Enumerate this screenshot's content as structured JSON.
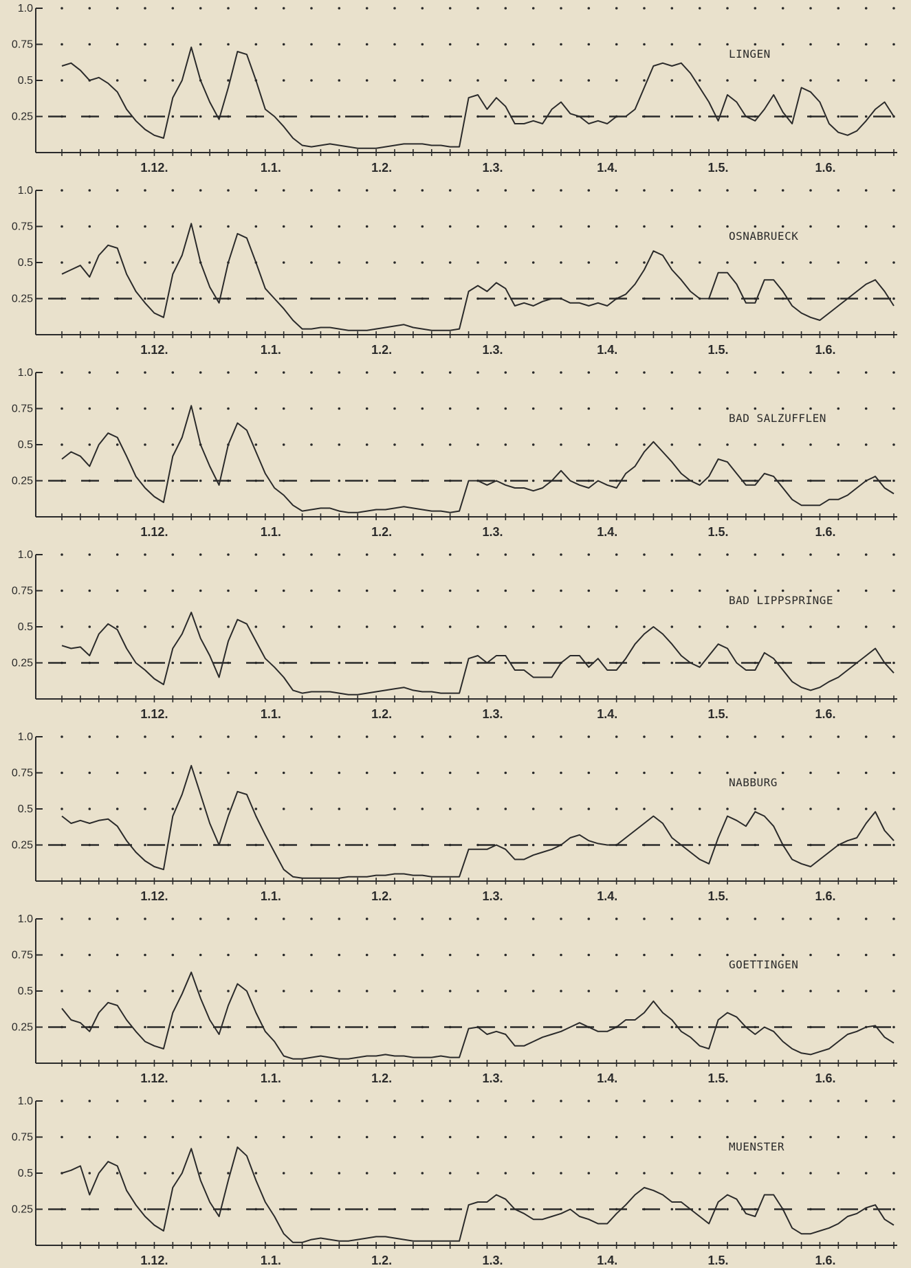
{
  "colors": {
    "background": "#e9e1cc",
    "ink": "#2a2a2a"
  },
  "chart_data": [
    {
      "type": "line",
      "name": "LINGEN",
      "title": "LINGEN",
      "x": [
        0.0,
        0.5,
        1.0,
        1.5,
        2.0,
        2.5,
        3.0,
        3.5,
        4.0,
        4.5,
        5.0,
        5.5,
        6.0,
        6.5,
        7.0,
        7.5,
        8.0,
        8.5,
        9.0,
        9.5,
        10.0,
        10.5,
        11.0,
        11.5,
        12.0,
        12.5,
        13.0,
        13.5,
        14.0,
        14.5,
        15.0,
        15.5,
        16.0,
        16.5,
        17.0,
        17.5,
        18.0,
        18.5,
        19.0,
        19.5,
        20.0,
        20.5,
        21.0,
        21.5,
        22.0,
        22.5,
        23.0,
        23.5,
        24.0,
        24.5,
        25.0,
        25.5,
        26.0,
        26.5,
        27.0,
        27.5,
        28.0,
        28.5,
        29.0,
        29.5,
        30.0,
        30.5,
        31.0,
        31.5,
        32.0,
        32.5,
        33.0,
        33.5,
        34.0,
        34.5,
        35.0,
        35.5,
        36.0,
        36.5,
        37.0,
        37.5,
        38.0,
        38.5,
        39.0,
        39.5,
        40.0,
        40.5,
        41.0,
        41.5,
        42.0,
        42.5,
        43.0,
        43.5,
        44.0,
        44.5,
        45.0
      ],
      "y": [
        0.6,
        0.62,
        0.57,
        0.5,
        0.52,
        0.48,
        0.42,
        0.3,
        0.22,
        0.16,
        0.12,
        0.1,
        0.38,
        0.5,
        0.73,
        0.5,
        0.35,
        0.23,
        0.45,
        0.7,
        0.68,
        0.5,
        0.3,
        0.25,
        0.18,
        0.1,
        0.05,
        0.04,
        0.05,
        0.06,
        0.05,
        0.04,
        0.03,
        0.03,
        0.03,
        0.04,
        0.05,
        0.06,
        0.06,
        0.06,
        0.05,
        0.05,
        0.04,
        0.04,
        0.38,
        0.4,
        0.3,
        0.38,
        0.32,
        0.2,
        0.2,
        0.22,
        0.2,
        0.3,
        0.35,
        0.27,
        0.25,
        0.2,
        0.22,
        0.2,
        0.25,
        0.25,
        0.3,
        0.45,
        0.6,
        0.62,
        0.6,
        0.62,
        0.55,
        0.45,
        0.35,
        0.22,
        0.4,
        0.35,
        0.25,
        0.22,
        0.3,
        0.4,
        0.28,
        0.2,
        0.45,
        0.42,
        0.35,
        0.2,
        0.14,
        0.12,
        0.15,
        0.22,
        0.3,
        0.35,
        0.25
      ]
    },
    {
      "type": "line",
      "name": "OSNABRUECK",
      "title": "OSNABRUECK",
      "x": [
        0.0,
        0.5,
        1.0,
        1.5,
        2.0,
        2.5,
        3.0,
        3.5,
        4.0,
        4.5,
        5.0,
        5.5,
        6.0,
        6.5,
        7.0,
        7.5,
        8.0,
        8.5,
        9.0,
        9.5,
        10.0,
        10.5,
        11.0,
        11.5,
        12.0,
        12.5,
        13.0,
        13.5,
        14.0,
        14.5,
        15.0,
        15.5,
        16.0,
        16.5,
        17.0,
        17.5,
        18.0,
        18.5,
        19.0,
        19.5,
        20.0,
        20.5,
        21.0,
        21.5,
        22.0,
        22.5,
        23.0,
        23.5,
        24.0,
        24.5,
        25.0,
        25.5,
        26.0,
        26.5,
        27.0,
        27.5,
        28.0,
        28.5,
        29.0,
        29.5,
        30.0,
        30.5,
        31.0,
        31.5,
        32.0,
        32.5,
        33.0,
        33.5,
        34.0,
        34.5,
        35.0,
        35.5,
        36.0,
        36.5,
        37.0,
        37.5,
        38.0,
        38.5,
        39.0,
        39.5,
        40.0,
        40.5,
        41.0,
        41.5,
        42.0,
        42.5,
        43.0,
        43.5,
        44.0,
        44.5,
        45.0
      ],
      "y": [
        0.42,
        0.45,
        0.48,
        0.4,
        0.55,
        0.62,
        0.6,
        0.42,
        0.3,
        0.22,
        0.15,
        0.12,
        0.42,
        0.55,
        0.77,
        0.5,
        0.33,
        0.22,
        0.5,
        0.7,
        0.67,
        0.5,
        0.32,
        0.25,
        0.18,
        0.1,
        0.04,
        0.04,
        0.05,
        0.05,
        0.04,
        0.03,
        0.03,
        0.03,
        0.04,
        0.05,
        0.06,
        0.07,
        0.05,
        0.04,
        0.03,
        0.03,
        0.03,
        0.04,
        0.3,
        0.34,
        0.3,
        0.36,
        0.32,
        0.2,
        0.22,
        0.2,
        0.23,
        0.25,
        0.25,
        0.22,
        0.22,
        0.2,
        0.22,
        0.2,
        0.25,
        0.28,
        0.35,
        0.45,
        0.58,
        0.55,
        0.45,
        0.38,
        0.3,
        0.25,
        0.25,
        0.43,
        0.43,
        0.35,
        0.22,
        0.22,
        0.38,
        0.38,
        0.3,
        0.2,
        0.15,
        0.12,
        0.1,
        0.15,
        0.2,
        0.25,
        0.3,
        0.35,
        0.38,
        0.3,
        0.2
      ]
    },
    {
      "type": "line",
      "name": "BAD SALZUFFLEN",
      "title": "BAD SALZUFFLEN",
      "x": [
        0.0,
        0.5,
        1.0,
        1.5,
        2.0,
        2.5,
        3.0,
        3.5,
        4.0,
        4.5,
        5.0,
        5.5,
        6.0,
        6.5,
        7.0,
        7.5,
        8.0,
        8.5,
        9.0,
        9.5,
        10.0,
        10.5,
        11.0,
        11.5,
        12.0,
        12.5,
        13.0,
        13.5,
        14.0,
        14.5,
        15.0,
        15.5,
        16.0,
        16.5,
        17.0,
        17.5,
        18.0,
        18.5,
        19.0,
        19.5,
        20.0,
        20.5,
        21.0,
        21.5,
        22.0,
        22.5,
        23.0,
        23.5,
        24.0,
        24.5,
        25.0,
        25.5,
        26.0,
        26.5,
        27.0,
        27.5,
        28.0,
        28.5,
        29.0,
        29.5,
        30.0,
        30.5,
        31.0,
        31.5,
        32.0,
        32.5,
        33.0,
        33.5,
        34.0,
        34.5,
        35.0,
        35.5,
        36.0,
        36.5,
        37.0,
        37.5,
        38.0,
        38.5,
        39.0,
        39.5,
        40.0,
        40.5,
        41.0,
        41.5,
        42.0,
        42.5,
        43.0,
        43.5,
        44.0,
        44.5,
        45.0
      ],
      "y": [
        0.4,
        0.45,
        0.42,
        0.35,
        0.5,
        0.58,
        0.55,
        0.42,
        0.28,
        0.2,
        0.14,
        0.1,
        0.42,
        0.55,
        0.77,
        0.5,
        0.35,
        0.22,
        0.5,
        0.65,
        0.6,
        0.45,
        0.3,
        0.2,
        0.15,
        0.08,
        0.04,
        0.05,
        0.06,
        0.06,
        0.04,
        0.03,
        0.03,
        0.04,
        0.05,
        0.05,
        0.06,
        0.07,
        0.06,
        0.05,
        0.04,
        0.04,
        0.03,
        0.04,
        0.25,
        0.25,
        0.22,
        0.25,
        0.22,
        0.2,
        0.2,
        0.18,
        0.2,
        0.25,
        0.32,
        0.25,
        0.22,
        0.2,
        0.25,
        0.22,
        0.2,
        0.3,
        0.35,
        0.45,
        0.52,
        0.45,
        0.38,
        0.3,
        0.25,
        0.22,
        0.28,
        0.4,
        0.38,
        0.3,
        0.22,
        0.22,
        0.3,
        0.28,
        0.2,
        0.12,
        0.08,
        0.08,
        0.08,
        0.12,
        0.12,
        0.15,
        0.2,
        0.25,
        0.28,
        0.2,
        0.16
      ]
    },
    {
      "type": "line",
      "name": "BAD LIPPSPRINGE",
      "title": "BAD LIPPSPRINGE",
      "x": [
        0.0,
        0.5,
        1.0,
        1.5,
        2.0,
        2.5,
        3.0,
        3.5,
        4.0,
        4.5,
        5.0,
        5.5,
        6.0,
        6.5,
        7.0,
        7.5,
        8.0,
        8.5,
        9.0,
        9.5,
        10.0,
        10.5,
        11.0,
        11.5,
        12.0,
        12.5,
        13.0,
        13.5,
        14.0,
        14.5,
        15.0,
        15.5,
        16.0,
        16.5,
        17.0,
        17.5,
        18.0,
        18.5,
        19.0,
        19.5,
        20.0,
        20.5,
        21.0,
        21.5,
        22.0,
        22.5,
        23.0,
        23.5,
        24.0,
        24.5,
        25.0,
        25.5,
        26.0,
        26.5,
        27.0,
        27.5,
        28.0,
        28.5,
        29.0,
        29.5,
        30.0,
        30.5,
        31.0,
        31.5,
        32.0,
        32.5,
        33.0,
        33.5,
        34.0,
        34.5,
        35.0,
        35.5,
        36.0,
        36.5,
        37.0,
        37.5,
        38.0,
        38.5,
        39.0,
        39.5,
        40.0,
        40.5,
        41.0,
        41.5,
        42.0,
        42.5,
        43.0,
        43.5,
        44.0,
        44.5,
        45.0
      ],
      "y": [
        0.37,
        0.35,
        0.36,
        0.3,
        0.45,
        0.52,
        0.48,
        0.35,
        0.25,
        0.2,
        0.14,
        0.1,
        0.35,
        0.45,
        0.6,
        0.42,
        0.3,
        0.15,
        0.4,
        0.55,
        0.52,
        0.4,
        0.28,
        0.22,
        0.15,
        0.06,
        0.04,
        0.05,
        0.05,
        0.05,
        0.04,
        0.03,
        0.03,
        0.04,
        0.05,
        0.06,
        0.07,
        0.08,
        0.06,
        0.05,
        0.05,
        0.04,
        0.04,
        0.04,
        0.28,
        0.3,
        0.25,
        0.3,
        0.3,
        0.2,
        0.2,
        0.15,
        0.15,
        0.15,
        0.25,
        0.3,
        0.3,
        0.22,
        0.28,
        0.2,
        0.2,
        0.28,
        0.38,
        0.45,
        0.5,
        0.45,
        0.38,
        0.3,
        0.25,
        0.22,
        0.3,
        0.38,
        0.35,
        0.25,
        0.2,
        0.2,
        0.32,
        0.28,
        0.2,
        0.12,
        0.08,
        0.06,
        0.08,
        0.12,
        0.15,
        0.2,
        0.25,
        0.3,
        0.35,
        0.25,
        0.18
      ]
    },
    {
      "type": "line",
      "name": "NABBURG",
      "title": "NABBURG",
      "x": [
        0.0,
        0.5,
        1.0,
        1.5,
        2.0,
        2.5,
        3.0,
        3.5,
        4.0,
        4.5,
        5.0,
        5.5,
        6.0,
        6.5,
        7.0,
        7.5,
        8.0,
        8.5,
        9.0,
        9.5,
        10.0,
        10.5,
        11.0,
        11.5,
        12.0,
        12.5,
        13.0,
        13.5,
        14.0,
        14.5,
        15.0,
        15.5,
        16.0,
        16.5,
        17.0,
        17.5,
        18.0,
        18.5,
        19.0,
        19.5,
        20.0,
        20.5,
        21.0,
        21.5,
        22.0,
        22.5,
        23.0,
        23.5,
        24.0,
        24.5,
        25.0,
        25.5,
        26.0,
        26.5,
        27.0,
        27.5,
        28.0,
        28.5,
        29.0,
        29.5,
        30.0,
        30.5,
        31.0,
        31.5,
        32.0,
        32.5,
        33.0,
        33.5,
        34.0,
        34.5,
        35.0,
        35.5,
        36.0,
        36.5,
        37.0,
        37.5,
        38.0,
        38.5,
        39.0,
        39.5,
        40.0,
        40.5,
        41.0,
        41.5,
        42.0,
        42.5,
        43.0,
        43.5,
        44.0,
        44.5,
        45.0
      ],
      "y": [
        0.45,
        0.4,
        0.42,
        0.4,
        0.42,
        0.43,
        0.38,
        0.28,
        0.2,
        0.14,
        0.1,
        0.08,
        0.45,
        0.6,
        0.8,
        0.6,
        0.4,
        0.25,
        0.45,
        0.62,
        0.6,
        0.45,
        0.32,
        0.2,
        0.08,
        0.03,
        0.02,
        0.02,
        0.02,
        0.02,
        0.02,
        0.03,
        0.03,
        0.03,
        0.04,
        0.04,
        0.05,
        0.05,
        0.04,
        0.04,
        0.03,
        0.03,
        0.03,
        0.03,
        0.22,
        0.22,
        0.22,
        0.25,
        0.22,
        0.15,
        0.15,
        0.18,
        0.2,
        0.22,
        0.25,
        0.3,
        0.32,
        0.28,
        0.26,
        0.25,
        0.25,
        0.3,
        0.35,
        0.4,
        0.45,
        0.4,
        0.3,
        0.25,
        0.2,
        0.15,
        0.12,
        0.3,
        0.45,
        0.42,
        0.38,
        0.48,
        0.45,
        0.38,
        0.25,
        0.15,
        0.12,
        0.1,
        0.15,
        0.2,
        0.25,
        0.28,
        0.3,
        0.4,
        0.48,
        0.35,
        0.28
      ]
    },
    {
      "type": "line",
      "name": "GOETTINGEN",
      "title": "GOETTINGEN",
      "x": [
        0.0,
        0.5,
        1.0,
        1.5,
        2.0,
        2.5,
        3.0,
        3.5,
        4.0,
        4.5,
        5.0,
        5.5,
        6.0,
        6.5,
        7.0,
        7.5,
        8.0,
        8.5,
        9.0,
        9.5,
        10.0,
        10.5,
        11.0,
        11.5,
        12.0,
        12.5,
        13.0,
        13.5,
        14.0,
        14.5,
        15.0,
        15.5,
        16.0,
        16.5,
        17.0,
        17.5,
        18.0,
        18.5,
        19.0,
        19.5,
        20.0,
        20.5,
        21.0,
        21.5,
        22.0,
        22.5,
        23.0,
        23.5,
        24.0,
        24.5,
        25.0,
        25.5,
        26.0,
        26.5,
        27.0,
        27.5,
        28.0,
        28.5,
        29.0,
        29.5,
        30.0,
        30.5,
        31.0,
        31.5,
        32.0,
        32.5,
        33.0,
        33.5,
        34.0,
        34.5,
        35.0,
        35.5,
        36.0,
        36.5,
        37.0,
        37.5,
        38.0,
        38.5,
        39.0,
        39.5,
        40.0,
        40.5,
        41.0,
        41.5,
        42.0,
        42.5,
        43.0,
        43.5,
        44.0,
        44.5,
        45.0
      ],
      "y": [
        0.38,
        0.3,
        0.28,
        0.22,
        0.35,
        0.42,
        0.4,
        0.3,
        0.22,
        0.15,
        0.12,
        0.1,
        0.35,
        0.48,
        0.63,
        0.45,
        0.3,
        0.2,
        0.4,
        0.55,
        0.5,
        0.35,
        0.22,
        0.15,
        0.05,
        0.03,
        0.03,
        0.04,
        0.05,
        0.04,
        0.03,
        0.03,
        0.04,
        0.05,
        0.05,
        0.06,
        0.05,
        0.05,
        0.04,
        0.04,
        0.04,
        0.05,
        0.04,
        0.04,
        0.24,
        0.25,
        0.2,
        0.22,
        0.2,
        0.12,
        0.12,
        0.15,
        0.18,
        0.2,
        0.22,
        0.25,
        0.28,
        0.25,
        0.22,
        0.22,
        0.25,
        0.3,
        0.3,
        0.35,
        0.43,
        0.35,
        0.3,
        0.22,
        0.18,
        0.12,
        0.1,
        0.3,
        0.35,
        0.32,
        0.25,
        0.2,
        0.25,
        0.22,
        0.15,
        0.1,
        0.07,
        0.06,
        0.08,
        0.1,
        0.15,
        0.2,
        0.22,
        0.25,
        0.26,
        0.18,
        0.14
      ]
    },
    {
      "type": "line",
      "name": "MUENSTER",
      "title": "MUENSTER",
      "x": [
        0.0,
        0.5,
        1.0,
        1.5,
        2.0,
        2.5,
        3.0,
        3.5,
        4.0,
        4.5,
        5.0,
        5.5,
        6.0,
        6.5,
        7.0,
        7.5,
        8.0,
        8.5,
        9.0,
        9.5,
        10.0,
        10.5,
        11.0,
        11.5,
        12.0,
        12.5,
        13.0,
        13.5,
        14.0,
        14.5,
        15.0,
        15.5,
        16.0,
        16.5,
        17.0,
        17.5,
        18.0,
        18.5,
        19.0,
        19.5,
        20.0,
        20.5,
        21.0,
        21.5,
        22.0,
        22.5,
        23.0,
        23.5,
        24.0,
        24.5,
        25.0,
        25.5,
        26.0,
        26.5,
        27.0,
        27.5,
        28.0,
        28.5,
        29.0,
        29.5,
        30.0,
        30.5,
        31.0,
        31.5,
        32.0,
        32.5,
        33.0,
        33.5,
        34.0,
        34.5,
        35.0,
        35.5,
        36.0,
        36.5,
        37.0,
        37.5,
        38.0,
        38.5,
        39.0,
        39.5,
        40.0,
        40.5,
        41.0,
        41.5,
        42.0,
        42.5,
        43.0,
        43.5,
        44.0,
        44.5,
        45.0
      ],
      "y": [
        0.5,
        0.52,
        0.55,
        0.35,
        0.5,
        0.58,
        0.55,
        0.38,
        0.28,
        0.2,
        0.14,
        0.1,
        0.4,
        0.5,
        0.67,
        0.45,
        0.3,
        0.2,
        0.45,
        0.68,
        0.62,
        0.45,
        0.3,
        0.2,
        0.08,
        0.02,
        0.02,
        0.04,
        0.05,
        0.04,
        0.03,
        0.03,
        0.04,
        0.05,
        0.06,
        0.06,
        0.05,
        0.04,
        0.03,
        0.03,
        0.03,
        0.03,
        0.03,
        0.03,
        0.28,
        0.3,
        0.3,
        0.35,
        0.32,
        0.25,
        0.22,
        0.18,
        0.18,
        0.2,
        0.22,
        0.25,
        0.2,
        0.18,
        0.15,
        0.15,
        0.22,
        0.28,
        0.35,
        0.4,
        0.38,
        0.35,
        0.3,
        0.3,
        0.25,
        0.2,
        0.15,
        0.3,
        0.35,
        0.32,
        0.22,
        0.2,
        0.35,
        0.35,
        0.25,
        0.12,
        0.08,
        0.08,
        0.1,
        0.12,
        0.15,
        0.2,
        0.22,
        0.26,
        0.28,
        0.18,
        0.14
      ]
    }
  ],
  "axis": {
    "y_ticks": [
      "1.0",
      "0.75",
      "0.5",
      "0.25"
    ],
    "y_tick_values": [
      1.0,
      0.75,
      0.5,
      0.25
    ],
    "x_tick_values": [
      0,
      1,
      2,
      3,
      4,
      5,
      6,
      7,
      8,
      9,
      10,
      11,
      12,
      13,
      14,
      15,
      16,
      17,
      18,
      19,
      20,
      21,
      22,
      23,
      24,
      25,
      26,
      27,
      28,
      29,
      30,
      31,
      32,
      33,
      34,
      35,
      36,
      37,
      38,
      39,
      40,
      41,
      42,
      43,
      44,
      45
    ],
    "x_labels": [
      "1.12.",
      "1.1.",
      "1.2.",
      "1.3.",
      "1.4.",
      "1.5.",
      "1.6."
    ],
    "x_label_values": [
      5,
      11.3,
      17.3,
      23.3,
      29.5,
      35.5,
      41.3
    ],
    "ylim": [
      0,
      1.0
    ],
    "xlim": [
      0,
      45
    ],
    "reference_line": 0.25,
    "grid": "dotted"
  }
}
